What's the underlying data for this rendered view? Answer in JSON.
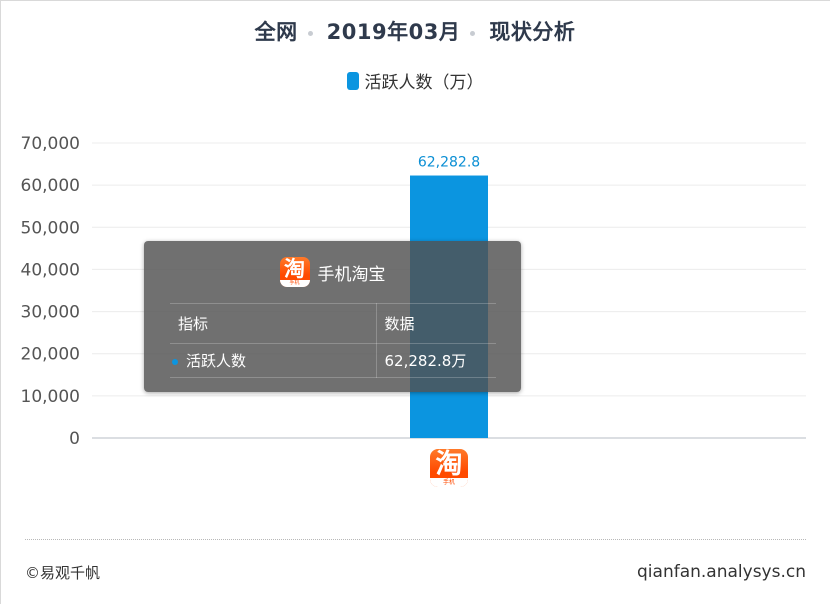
{
  "header": {
    "scope": "全网",
    "period": "2019年03月",
    "analysis": "现状分析"
  },
  "chart_data": {
    "type": "bar",
    "categories": [
      "手机淘宝"
    ],
    "series": [
      {
        "name": "活跃人数（万）",
        "values": [
          62282.8
        ],
        "color": "#0b95e0"
      }
    ],
    "data_labels": [
      "62,282.8"
    ],
    "ylim": [
      0,
      70000
    ],
    "yticks": [
      0,
      10000,
      20000,
      30000,
      40000,
      50000,
      60000,
      70000
    ],
    "ytick_labels": [
      "0",
      "10,000",
      "20,000",
      "30,000",
      "40,000",
      "50,000",
      "60,000",
      "70,000"
    ],
    "grid": true,
    "legend_position": "top-center"
  },
  "tooltip": {
    "app_name": "手机淘宝",
    "col_metric": "指标",
    "col_value": "数据",
    "row_metric": "活跃人数",
    "row_value": "62,282.8万"
  },
  "app_icon": {
    "name": "taobao-icon",
    "glyph": "淘",
    "band_text": "手机"
  },
  "footer": {
    "copyright": "©易观千帆",
    "site": "qianfan.analysys.cn"
  }
}
